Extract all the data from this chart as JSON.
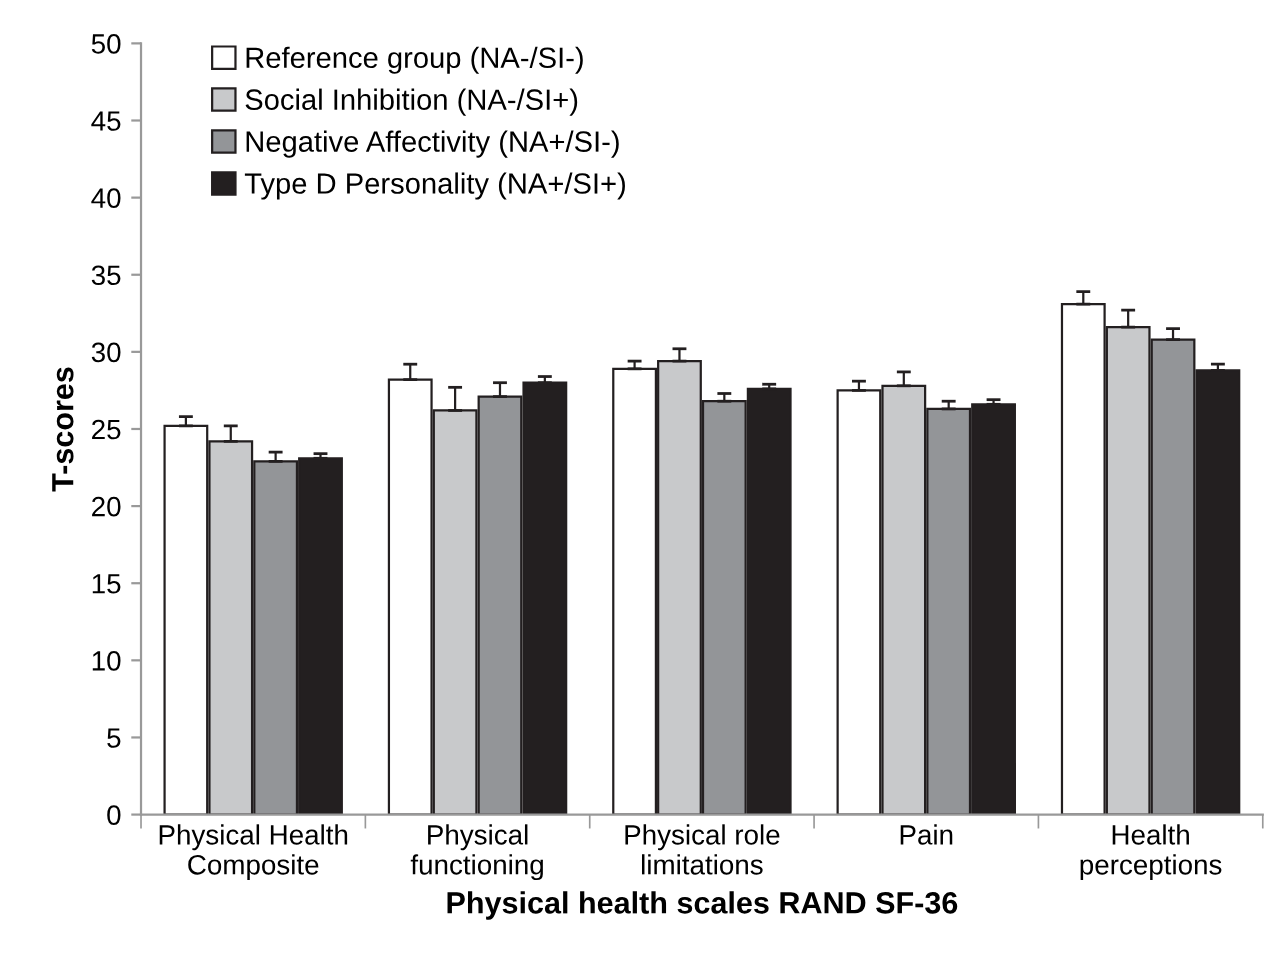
{
  "chart_data": {
    "type": "bar",
    "xlabel": "Physical health scales RAND SF-36",
    "ylabel": "T-scores",
    "categories": [
      "Physical Health\nComposite",
      "Physical\nfunctioning",
      "Physical role\nlimitations",
      "Pain",
      "Health\nperceptions"
    ],
    "series": [
      {
        "name": "Reference group (NA-/SI-)",
        "color": "#ffffff",
        "values": [
          25.2,
          28.2,
          28.9,
          27.5,
          33.1
        ],
        "errors": [
          [
            25.2,
            25.8
          ],
          [
            28.2,
            29.2
          ],
          [
            28.9,
            29.4
          ],
          [
            27.5,
            28.1
          ],
          [
            33.1,
            33.9
          ]
        ]
      },
      {
        "name": "Social Inhibition (NA-/SI+)",
        "color": "#c8c9cb",
        "values": [
          24.2,
          26.2,
          29.4,
          27.8,
          31.6
        ],
        "errors": [
          [
            24.2,
            25.2
          ],
          [
            26.2,
            27.7
          ],
          [
            29.4,
            30.2
          ],
          [
            27.8,
            28.7
          ],
          [
            31.6,
            32.7
          ]
        ]
      },
      {
        "name": "Negative Affectivity (NA+/SI-)",
        "color": "#939598",
        "values": [
          22.9,
          27.1,
          26.8,
          26.3,
          30.8
        ],
        "errors": [
          [
            22.9,
            23.5
          ],
          [
            27.1,
            28.0
          ],
          [
            26.8,
            27.3
          ],
          [
            26.3,
            26.8
          ],
          [
            30.8,
            31.5
          ]
        ]
      },
      {
        "name": "Type D Personality (NA+/SI+)",
        "color": "#231f20",
        "values": [
          23.1,
          28.0,
          27.6,
          26.6,
          28.8
        ],
        "errors": [
          [
            23.1,
            23.4
          ],
          [
            28.0,
            28.4
          ],
          [
            27.6,
            27.9
          ],
          [
            26.6,
            26.9
          ],
          [
            28.8,
            29.2
          ]
        ]
      }
    ],
    "ylim": [
      0,
      50
    ],
    "yticks": [
      0,
      5,
      10,
      15,
      20,
      25,
      30,
      35,
      40,
      45,
      50
    ],
    "grid": false,
    "legend": "top left"
  }
}
